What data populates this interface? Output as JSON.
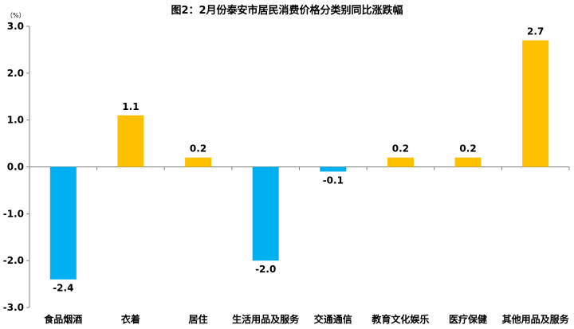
{
  "chart_data": {
    "type": "bar",
    "title": "图2：2月份泰安市居民消费价格分类别同比涨跌幅",
    "unit": "（%）",
    "categories": [
      "食品烟酒",
      "衣着",
      "居住",
      "生活用品及服务",
      "交通通信",
      "教育文化娱乐",
      "医疗保健",
      "其他用品及服务"
    ],
    "values": [
      -2.4,
      1.1,
      0.2,
      -2.0,
      -0.1,
      0.2,
      0.2,
      2.7
    ],
    "value_labels": [
      "-2.4",
      "1.1",
      "0.2",
      "-2.0",
      "-0.1",
      "0.2",
      "0.2",
      "2.7"
    ],
    "ylim": [
      -3.0,
      3.0
    ],
    "yticks": [
      "3.0",
      "2.0",
      "1.0",
      "0.0",
      "-1.0",
      "-2.0",
      "-3.0"
    ],
    "ytick_values": [
      3.0,
      2.0,
      1.0,
      0.0,
      -1.0,
      -2.0,
      -3.0
    ],
    "colors": {
      "positive": "#FFC000",
      "negative": "#00B0F0"
    },
    "grid": false,
    "legend": "none"
  }
}
